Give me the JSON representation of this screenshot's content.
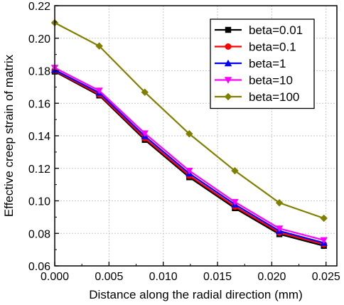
{
  "chart_data": {
    "type": "line",
    "title": "",
    "xlabel": "Distance along the radial direction (mm)",
    "ylabel": "Effective creep strain of matrix",
    "xlim": [
      0.0,
      0.026
    ],
    "ylim": [
      0.06,
      0.22
    ],
    "xticks": [
      "0.000",
      "0.005",
      "0.010",
      "0.015",
      "0.020",
      "0.025"
    ],
    "yticks": [
      "0.06",
      "0.08",
      "0.10",
      "0.12",
      "0.14",
      "0.16",
      "0.18",
      "0.20",
      "0.22"
    ],
    "grid": true,
    "legend_position": "top-right",
    "x": [
      0.0,
      0.0041,
      0.0083,
      0.0124,
      0.0166,
      0.0207,
      0.0248
    ],
    "series": [
      {
        "name": "beta=0.01",
        "color": "#000000",
        "marker": "square",
        "values": [
          0.1795,
          0.1648,
          0.1375,
          0.1145,
          0.0955,
          0.0795,
          0.0723
        ]
      },
      {
        "name": "beta=0.1",
        "color": "#ff0000",
        "marker": "circle",
        "values": [
          0.18,
          0.1655,
          0.1385,
          0.1155,
          0.0965,
          0.0805,
          0.0733
        ]
      },
      {
        "name": "beta=1",
        "color": "#0000ff",
        "marker": "triangle-up",
        "values": [
          0.1805,
          0.1665,
          0.1398,
          0.1168,
          0.0978,
          0.0815,
          0.0742
        ]
      },
      {
        "name": "beta=10",
        "color": "#ff00ff",
        "marker": "triangle-down",
        "values": [
          0.1818,
          0.1678,
          0.1415,
          0.1185,
          0.0993,
          0.083,
          0.0758
        ]
      },
      {
        "name": "beta=100",
        "color": "#808000",
        "marker": "diamond",
        "values": [
          0.2095,
          0.1952,
          0.1668,
          0.1412,
          0.1185,
          0.0988,
          0.0893
        ]
      }
    ]
  }
}
